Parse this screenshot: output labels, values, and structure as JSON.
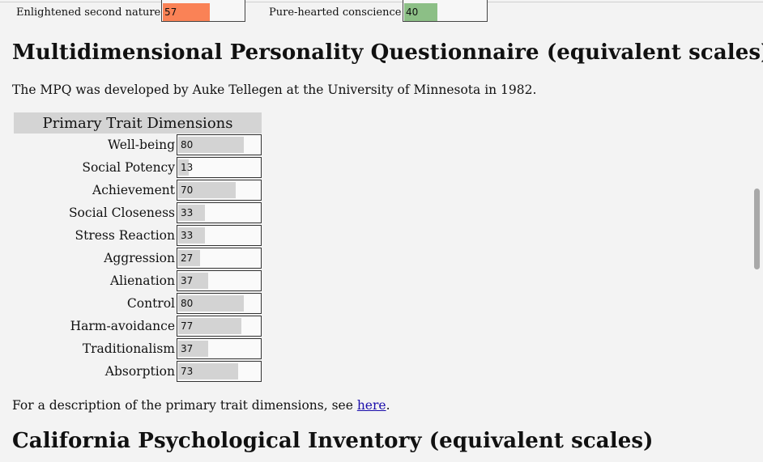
{
  "top_scales": [
    {
      "label": "Enlightened second nature",
      "value": "57",
      "fraction": 0.57,
      "color": "#fa8256"
    },
    {
      "label": "Pure-hearted conscience",
      "value": "40",
      "fraction": 0.4,
      "color": "#8cbf86"
    }
  ],
  "mpq": {
    "heading": "Multidimensional Personality Questionnaire (equivalent scales)",
    "intro": "The MPQ was developed by Auke Tellegen at the University of Minnesota in 1982.",
    "table_title": "Primary Trait Dimensions",
    "traits": [
      {
        "name": "Well-being",
        "value": "80",
        "fraction": 0.8
      },
      {
        "name": "Social Potency",
        "value": "13",
        "fraction": 0.13
      },
      {
        "name": "Achievement",
        "value": "70",
        "fraction": 0.7
      },
      {
        "name": "Social Closeness",
        "value": "33",
        "fraction": 0.33
      },
      {
        "name": "Stress Reaction",
        "value": "33",
        "fraction": 0.33
      },
      {
        "name": "Aggression",
        "value": "27",
        "fraction": 0.27
      },
      {
        "name": "Alienation",
        "value": "37",
        "fraction": 0.37
      },
      {
        "name": "Control",
        "value": "80",
        "fraction": 0.8
      },
      {
        "name": "Harm-avoidance",
        "value": "77",
        "fraction": 0.77
      },
      {
        "name": "Traditionalism",
        "value": "37",
        "fraction": 0.37
      },
      {
        "name": "Absorption",
        "value": "73",
        "fraction": 0.73
      }
    ],
    "description_prefix": "For a description of the primary trait dimensions, see ",
    "description_link": "here",
    "description_suffix": "."
  },
  "cpi": {
    "heading": "California Psychological Inventory (equivalent scales)"
  },
  "colors": {
    "bar_fill": "#d3d3d3",
    "table_header_bg": "#d4d4d4",
    "link": "#1a0dab"
  }
}
